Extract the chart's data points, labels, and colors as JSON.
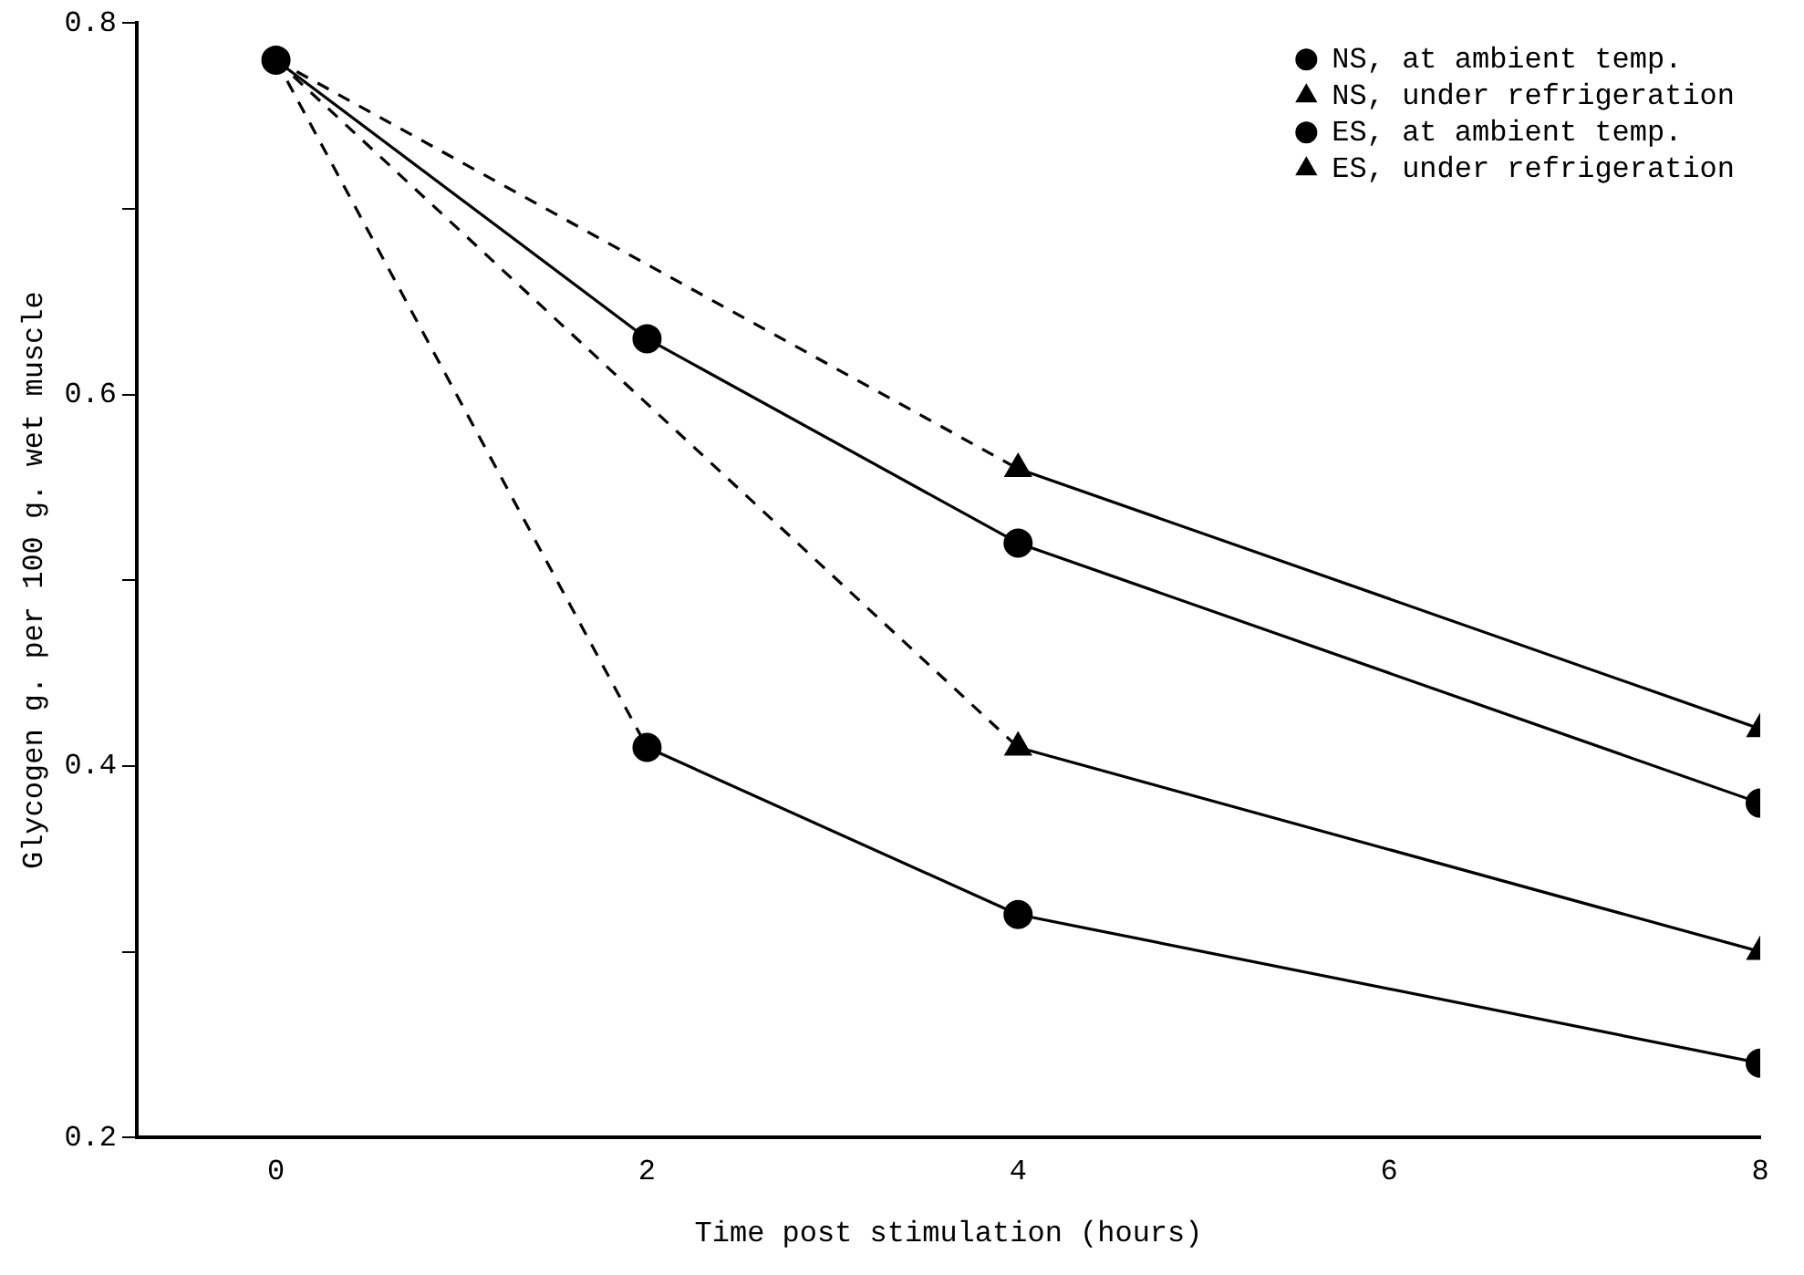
{
  "chart_data": {
    "type": "line",
    "xlabel": "Time post stimulation (hours)",
    "ylabel": "Glycogen g. per 100 g. wet muscle",
    "xlim": [
      -0.75,
      8
    ],
    "xticks": [
      0,
      2,
      4,
      6,
      8
    ],
    "ylim": [
      0.2,
      0.8
    ],
    "yticks": [
      0.2,
      {
        "value": 0.3,
        "label": null
      },
      0.4,
      {
        "value": 0.5,
        "label": null
      },
      0.6,
      {
        "value": 0.7,
        "label": null
      },
      0.8
    ],
    "grid": false,
    "legend": "top right",
    "series": [
      {
        "name": "NS, at ambient temp.",
        "color": "#000000",
        "x": [
          0,
          2,
          4,
          8
        ],
        "values": [
          0.78,
          0.63,
          0.52,
          0.38
        ],
        "marker": "circle",
        "line_style": "solid"
      },
      {
        "name": "NS, under refrigeration",
        "color": "#000000",
        "x": [
          4,
          8
        ],
        "values": [
          0.56,
          0.42
        ],
        "marker": "triangle",
        "line_style": "solid"
      },
      {
        "name": "ES, at ambient temp.",
        "color": "#000000",
        "x": [
          2,
          4,
          8
        ],
        "values": [
          0.41,
          0.32,
          0.24
        ],
        "marker": "circle",
        "line_style": "solid"
      },
      {
        "name": "ES, under refrigeration",
        "color": "#000000",
        "x": [
          4,
          8
        ],
        "values": [
          0.41,
          0.3
        ],
        "marker": "triangle",
        "line_style": "solid"
      },
      {
        "color": "#000000",
        "x": [
          0,
          4
        ],
        "values": [
          0.78,
          0.56
        ],
        "marker": "none",
        "line_style": "dashed"
      },
      {
        "color": "#000000",
        "x": [
          0,
          2
        ],
        "values": [
          0.78,
          0.41
        ],
        "marker": "none",
        "line_style": "dashed"
      },
      {
        "color": "#000000",
        "x": [
          0,
          4
        ],
        "values": [
          0.78,
          0.41
        ],
        "marker": "none",
        "line_style": "dashed"
      }
    ]
  }
}
